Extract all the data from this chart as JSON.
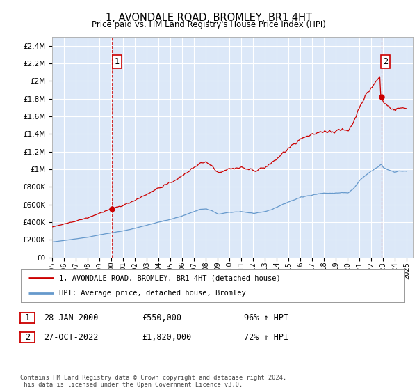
{
  "title": "1, AVONDALE ROAD, BROMLEY, BR1 4HT",
  "subtitle": "Price paid vs. HM Land Registry's House Price Index (HPI)",
  "plot_bg_color": "#dce8f8",
  "grid_color": "#ffffff",
  "ylim": [
    0,
    2500000
  ],
  "yticks": [
    0,
    200000,
    400000,
    600000,
    800000,
    1000000,
    1200000,
    1400000,
    1600000,
    1800000,
    2000000,
    2200000,
    2400000
  ],
  "sale1_x": 2000.08,
  "sale1_y": 550000,
  "sale2_x": 2022.83,
  "sale2_y": 1820000,
  "legend_line1": "1, AVONDALE ROAD, BROMLEY, BR1 4HT (detached house)",
  "legend_line2": "HPI: Average price, detached house, Bromley",
  "table_row1": [
    "1",
    "28-JAN-2000",
    "£550,000",
    "96% ↑ HPI"
  ],
  "table_row2": [
    "2",
    "27-OCT-2022",
    "£1,820,000",
    "72% ↑ HPI"
  ],
  "footer": "Contains HM Land Registry data © Crown copyright and database right 2024.\nThis data is licensed under the Open Government Licence v3.0.",
  "line_color_red": "#cc0000",
  "line_color_blue": "#6699cc",
  "xmin": 1995.0,
  "xmax": 2025.5,
  "xticks": [
    1995,
    1996,
    1997,
    1998,
    1999,
    2000,
    2001,
    2002,
    2003,
    2004,
    2005,
    2006,
    2007,
    2008,
    2009,
    2010,
    2011,
    2012,
    2013,
    2014,
    2015,
    2016,
    2017,
    2018,
    2019,
    2020,
    2021,
    2022,
    2023,
    2024,
    2025
  ]
}
